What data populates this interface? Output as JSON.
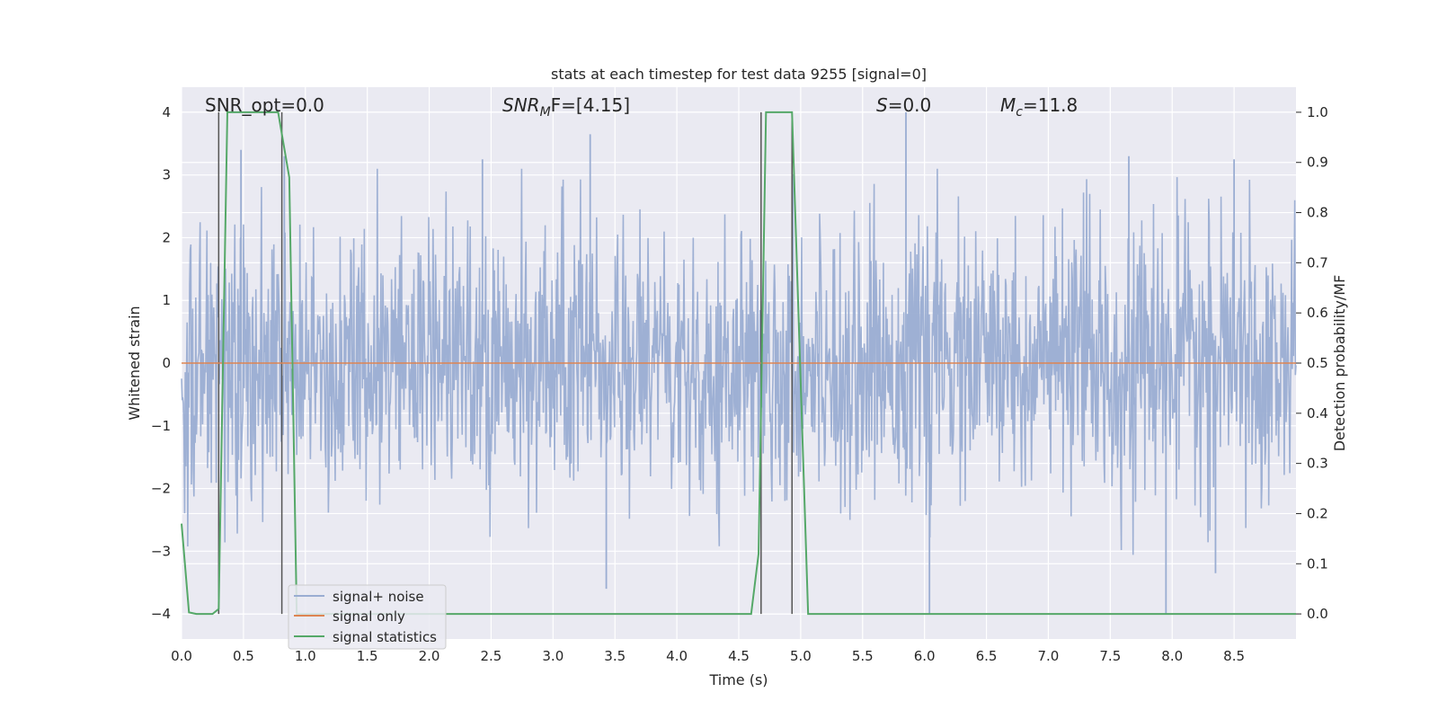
{
  "chart_data": {
    "type": "line",
    "title": "stats at each timestep for test data 9255 [signal=0]",
    "xlabel": "Time (s)",
    "ylabel": "Whitened strain",
    "ylabel_right": "Detection probability/MF",
    "xlim": [
      0.0,
      9.0
    ],
    "ylim": [
      -4.4,
      4.4
    ],
    "ylim_right": [
      -0.05,
      1.05
    ],
    "x_ticks": [
      "0.0",
      "0.5",
      "1.0",
      "1.5",
      "2.0",
      "2.5",
      "3.0",
      "3.5",
      "4.0",
      "4.5",
      "5.0",
      "5.5",
      "6.0",
      "6.5",
      "7.0",
      "7.5",
      "8.0",
      "8.5"
    ],
    "y_ticks": [
      "−4",
      "−3",
      "−2",
      "−1",
      "0",
      "1",
      "2",
      "3",
      "4"
    ],
    "y_ticks_right": [
      "0.0",
      "0.1",
      "0.2",
      "0.3",
      "0.4",
      "0.5",
      "0.6",
      "0.7",
      "0.8",
      "0.9",
      "1.0"
    ],
    "grid": true,
    "legend_position": "lower-left",
    "annotations": {
      "snr_opt": "SNR_opt=0.0",
      "snr_mf_label": "SNR",
      "snr_mf_sub": "M",
      "snr_mf_tail": "F=[4.15]",
      "s_label": "S",
      "s_tail": "=0.0",
      "mc_label": "M",
      "mc_sub": "c",
      "mc_tail": "=11.8"
    },
    "series": [
      {
        "name": "signal+ noise",
        "color": "#9aadd2",
        "axis": "left",
        "description_values": {
          "typical_range": [
            -2.0,
            2.5
          ],
          "approx_spikes": [
            {
              "x": 0.48,
              "y": 3.4
            },
            {
              "x": 0.83,
              "y": 3.3
            },
            {
              "x": 2.43,
              "y": 3.25
            },
            {
              "x": 3.3,
              "y": 3.65
            },
            {
              "x": 5.85,
              "y": 4.0
            },
            {
              "x": 7.65,
              "y": 3.3
            },
            {
              "x": 8.5,
              "y": 3.25
            },
            {
              "x": 3.43,
              "y": -3.6
            },
            {
              "x": 6.04,
              "y": -4.0
            },
            {
              "x": 7.95,
              "y": -4.0
            },
            {
              "x": 8.35,
              "y": -3.35
            }
          ]
        }
      },
      {
        "name": "signal only",
        "color": "#dd8452",
        "axis": "left",
        "x": [
          0.0,
          9.0
        ],
        "y": [
          0.0,
          0.0
        ]
      },
      {
        "name": "signal statistics",
        "color": "#55a868",
        "axis": "right",
        "x": [
          0.0,
          0.06,
          0.12,
          0.25,
          0.3,
          0.37,
          0.78,
          0.87,
          0.93,
          4.6,
          4.66,
          4.72,
          4.93,
          5.06,
          9.0
        ],
        "y": [
          0.18,
          0.003,
          0.0,
          0.0,
          0.01,
          1.0,
          1.0,
          0.87,
          0.0,
          0.0,
          0.12,
          1.0,
          1.0,
          0.0,
          0.0
        ]
      }
    ],
    "vertical_markers": {
      "color": "#555555",
      "x": [
        0.3,
        0.81,
        4.68,
        4.93
      ],
      "y_top": 4.0,
      "y_bottom": -4.0
    }
  }
}
